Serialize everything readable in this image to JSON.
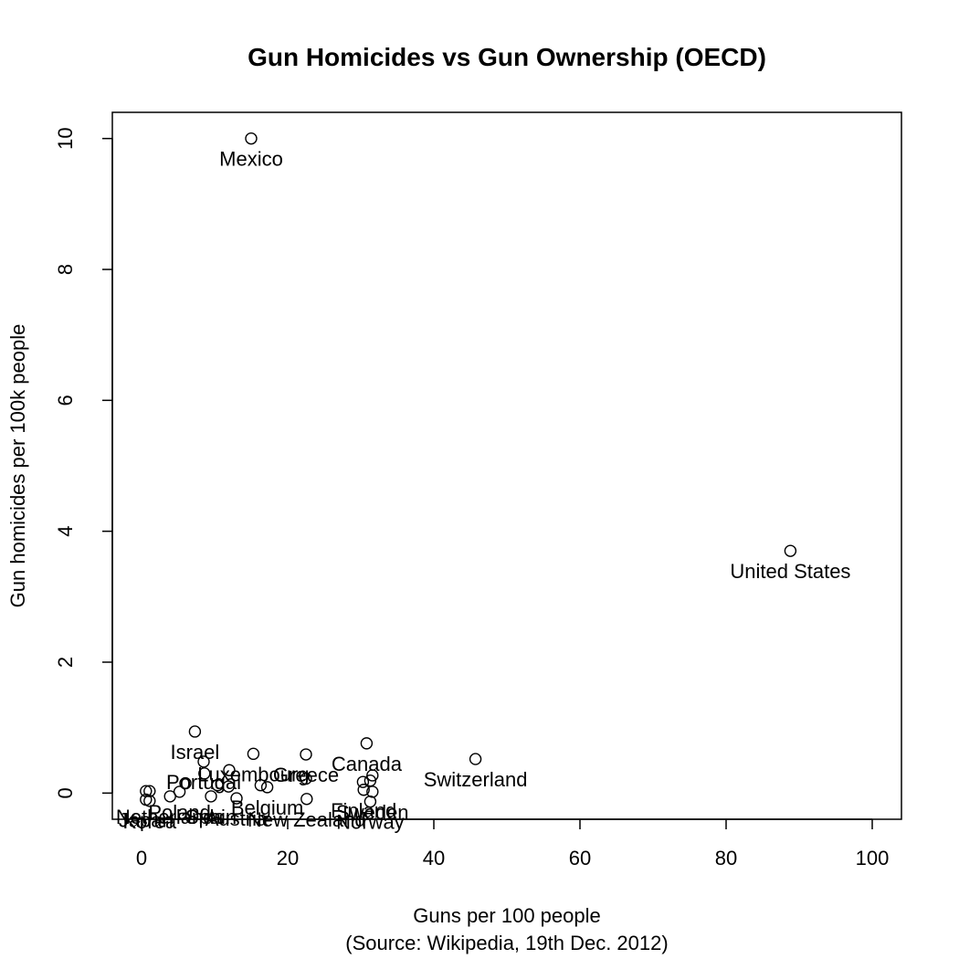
{
  "chart_data": {
    "type": "scatter",
    "title": "Gun Homicides vs Gun Ownership (OECD)",
    "xlabel": "Guns per 100 people",
    "xlabel_sub": "(Source: Wikipedia, 19th Dec. 2012)",
    "ylabel": "Gun homicides per 100k people",
    "xlim": [
      -4,
      104
    ],
    "ylim": [
      -0.4,
      10.4
    ],
    "xticks": [
      0,
      20,
      40,
      60,
      80,
      100
    ],
    "yticks": [
      0,
      2,
      4,
      6,
      8,
      10
    ],
    "grid": false,
    "points": [
      {
        "x": 15.0,
        "y": 10.0,
        "label": "Mexico"
      },
      {
        "x": 88.8,
        "y": 3.7,
        "label": "United States"
      },
      {
        "x": 45.7,
        "y": 0.52,
        "label": "Switzerland"
      },
      {
        "x": 30.8,
        "y": 0.76,
        "label": "Canada"
      },
      {
        "x": 7.3,
        "y": 0.94,
        "label": "Israel"
      },
      {
        "x": 22.5,
        "y": 0.59,
        "label": "Greece"
      },
      {
        "x": 15.3,
        "y": 0.6,
        "label": "Luxembourg"
      },
      {
        "x": 8.5,
        "y": 0.48,
        "label": "Portugal"
      },
      {
        "x": 12.0,
        "y": 0.35,
        "label": ""
      },
      {
        "x": 8.6,
        "y": 0.3,
        "label": ""
      },
      {
        "x": 22.5,
        "y": 0.22,
        "label": ""
      },
      {
        "x": 31.6,
        "y": 0.27,
        "label": ""
      },
      {
        "x": 31.3,
        "y": 0.19,
        "label": ""
      },
      {
        "x": 30.3,
        "y": 0.17,
        "label": ""
      },
      {
        "x": 6.0,
        "y": 0.15,
        "label": ""
      },
      {
        "x": 10.4,
        "y": 0.12,
        "label": ""
      },
      {
        "x": 16.3,
        "y": 0.12,
        "label": ""
      },
      {
        "x": 11.9,
        "y": 0.1,
        "label": ""
      },
      {
        "x": 17.2,
        "y": 0.09,
        "label": "Belgium"
      },
      {
        "x": 30.4,
        "y": 0.05,
        "label": "Finland"
      },
      {
        "x": 31.6,
        "y": 0.02,
        "label": "Sweden"
      },
      {
        "x": 0.6,
        "y": 0.03,
        "label": ""
      },
      {
        "x": 1.1,
        "y": 0.03,
        "label": ""
      },
      {
        "x": 3.9,
        "y": -0.05,
        "label": "Netherlands"
      },
      {
        "x": 5.2,
        "y": 0.02,
        "label": "Poland"
      },
      {
        "x": 9.5,
        "y": -0.05,
        "label": "Spain"
      },
      {
        "x": 13.0,
        "y": -0.08,
        "label": "Austria"
      },
      {
        "x": 22.6,
        "y": -0.09,
        "label": "New Zealand"
      },
      {
        "x": 31.3,
        "y": -0.13,
        "label": "Norway"
      },
      {
        "x": 0.6,
        "y": -0.1,
        "label": "Japan"
      },
      {
        "x": 1.1,
        "y": -0.12,
        "label": "Korea"
      }
    ]
  }
}
